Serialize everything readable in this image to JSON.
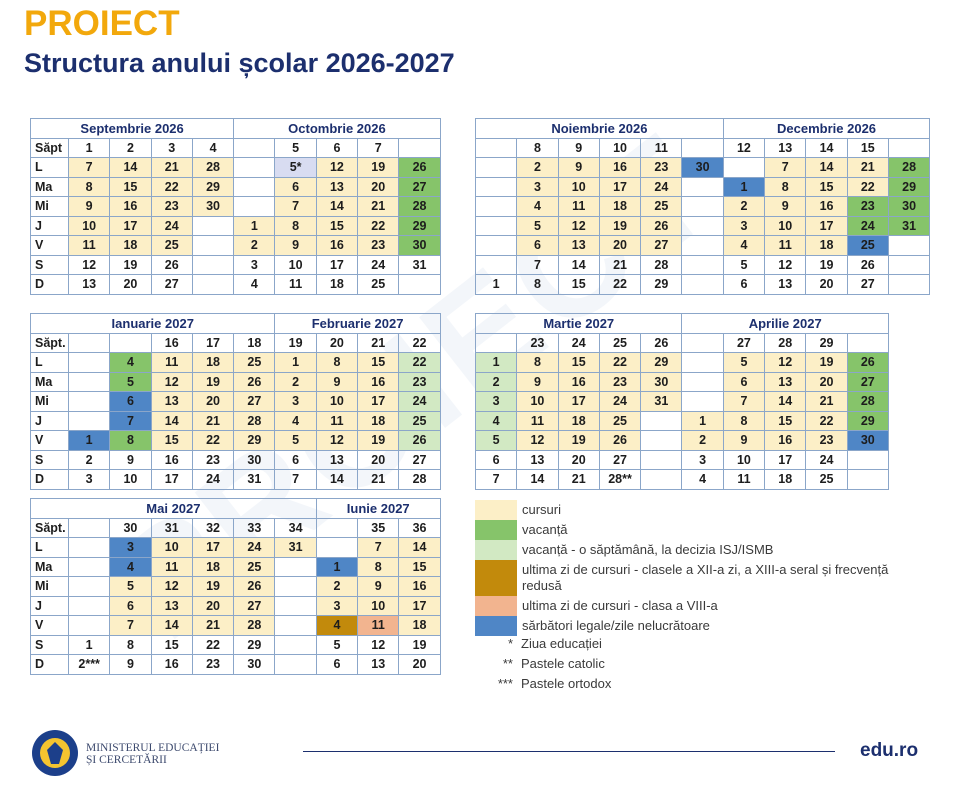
{
  "header": {
    "title": "PROIECT",
    "subtitle": "Structura anului școlar 2026-2027"
  },
  "calendars": [
    {
      "months": [
        "Septembrie 2026",
        "Octombrie 2026"
      ],
      "weeks": [
        "Săpt",
        1,
        2,
        3,
        4,
        null,
        5,
        6,
        7,
        null
      ],
      "rows": [
        {
          "day": "L",
          "cells": [
            7,
            14,
            21,
            28,
            null,
            "5*",
            12,
            19,
            26
          ],
          "colors": [
            "#fcefc7",
            "#fcefc7",
            "#fcefc7",
            "#fcefc7",
            null,
            "#d8dcf1",
            "#fcefc7",
            "#fcefc7",
            "#86c46a"
          ]
        },
        {
          "day": "Ma",
          "cells": [
            8,
            15,
            22,
            29,
            null,
            6,
            13,
            20,
            27
          ],
          "colors": [
            "#fcefc7",
            "#fcefc7",
            "#fcefc7",
            "#fcefc7",
            null,
            "#fcefc7",
            "#fcefc7",
            "#fcefc7",
            "#86c46a"
          ]
        },
        {
          "day": "Mi",
          "cells": [
            9,
            16,
            23,
            30,
            null,
            7,
            14,
            21,
            28
          ],
          "colors": [
            "#fcefc7",
            "#fcefc7",
            "#fcefc7",
            "#fcefc7",
            null,
            "#fcefc7",
            "#fcefc7",
            "#fcefc7",
            "#86c46a"
          ]
        },
        {
          "day": "J",
          "cells": [
            10,
            17,
            24,
            null,
            1,
            8,
            15,
            22,
            29
          ],
          "colors": [
            "#fcefc7",
            "#fcefc7",
            "#fcefc7",
            null,
            "#fcefc7",
            "#fcefc7",
            "#fcefc7",
            "#fcefc7",
            "#86c46a"
          ]
        },
        {
          "day": "V",
          "cells": [
            11,
            18,
            25,
            null,
            2,
            9,
            16,
            23,
            30
          ],
          "colors": [
            "#fcefc7",
            "#fcefc7",
            "#fcefc7",
            null,
            "#fcefc7",
            "#fcefc7",
            "#fcefc7",
            "#fcefc7",
            "#86c46a"
          ]
        },
        {
          "day": "S",
          "cells": [
            12,
            19,
            26,
            null,
            3,
            10,
            17,
            24,
            31
          ],
          "colors": [
            null,
            null,
            null,
            null,
            null,
            null,
            null,
            null,
            null
          ]
        },
        {
          "day": "D",
          "cells": [
            13,
            20,
            27,
            null,
            4,
            11,
            18,
            25,
            null
          ],
          "colors": [
            null,
            null,
            null,
            null,
            null,
            null,
            null,
            null,
            null
          ]
        }
      ]
    },
    {
      "months": [
        "Noiembrie 2026",
        "Decembrie 2026"
      ],
      "weeks": [
        null,
        8,
        9,
        10,
        11,
        null,
        12,
        13,
        14,
        15,
        null
      ],
      "rows": [
        {
          "cells": [
            null,
            2,
            9,
            16,
            23,
            30,
            null,
            7,
            14,
            21,
            28
          ],
          "colors": [
            null,
            "#fcefc7",
            "#fcefc7",
            "#fcefc7",
            "#fcefc7",
            "#4f86c6",
            null,
            "#fcefc7",
            "#fcefc7",
            "#fcefc7",
            "#86c46a"
          ]
        },
        {
          "cells": [
            null,
            3,
            10,
            17,
            24,
            null,
            1,
            8,
            15,
            22,
            29
          ],
          "colors": [
            null,
            "#fcefc7",
            "#fcefc7",
            "#fcefc7",
            "#fcefc7",
            null,
            "#4f86c6",
            "#fcefc7",
            "#fcefc7",
            "#fcefc7",
            "#86c46a"
          ]
        },
        {
          "cells": [
            null,
            4,
            11,
            18,
            25,
            null,
            2,
            9,
            16,
            23,
            30
          ],
          "colors": [
            null,
            "#fcefc7",
            "#fcefc7",
            "#fcefc7",
            "#fcefc7",
            null,
            "#fcefc7",
            "#fcefc7",
            "#fcefc7",
            "#86c46a",
            "#86c46a"
          ]
        },
        {
          "cells": [
            null,
            5,
            12,
            19,
            26,
            null,
            3,
            10,
            17,
            24,
            31
          ],
          "colors": [
            null,
            "#fcefc7",
            "#fcefc7",
            "#fcefc7",
            "#fcefc7",
            null,
            "#fcefc7",
            "#fcefc7",
            "#fcefc7",
            "#86c46a",
            "#86c46a"
          ]
        },
        {
          "cells": [
            null,
            6,
            13,
            20,
            27,
            null,
            4,
            11,
            18,
            25,
            null
          ],
          "colors": [
            null,
            "#fcefc7",
            "#fcefc7",
            "#fcefc7",
            "#fcefc7",
            null,
            "#fcefc7",
            "#fcefc7",
            "#fcefc7",
            "#4f86c6",
            null
          ]
        },
        {
          "cells": [
            null,
            7,
            14,
            21,
            28,
            null,
            5,
            12,
            19,
            26,
            null
          ],
          "colors": [
            null,
            null,
            null,
            null,
            null,
            null,
            null,
            null,
            null,
            null,
            null
          ]
        },
        {
          "cells": [
            1,
            8,
            15,
            22,
            29,
            null,
            6,
            13,
            20,
            27,
            null
          ],
          "colors": [
            null,
            null,
            null,
            null,
            null,
            null,
            null,
            null,
            null,
            null,
            null
          ]
        }
      ]
    },
    {
      "months": [
        "Ianuarie 2027",
        "Februarie 2027"
      ],
      "weeks": [
        "Săpt.",
        null,
        null,
        16,
        17,
        18,
        19,
        20,
        21,
        22
      ],
      "rows": [
        {
          "day": "L",
          "cells": [
            null,
            4,
            11,
            18,
            25,
            1,
            8,
            15,
            22
          ],
          "colors": [
            null,
            "#86c46a",
            "#fcefc7",
            "#fcefc7",
            "#fcefc7",
            "#fcefc7",
            "#fcefc7",
            "#fcefc7",
            "#d2e9c3"
          ]
        },
        {
          "day": "Ma",
          "cells": [
            null,
            5,
            12,
            19,
            26,
            2,
            9,
            16,
            23
          ],
          "colors": [
            null,
            "#86c46a",
            "#fcefc7",
            "#fcefc7",
            "#fcefc7",
            "#fcefc7",
            "#fcefc7",
            "#fcefc7",
            "#d2e9c3"
          ]
        },
        {
          "day": "Mi",
          "cells": [
            null,
            6,
            13,
            20,
            27,
            3,
            10,
            17,
            24
          ],
          "colors": [
            null,
            "#4f86c6",
            "#fcefc7",
            "#fcefc7",
            "#fcefc7",
            "#fcefc7",
            "#fcefc7",
            "#fcefc7",
            "#d2e9c3"
          ]
        },
        {
          "day": "J",
          "cells": [
            null,
            7,
            14,
            21,
            28,
            4,
            11,
            18,
            25
          ],
          "colors": [
            null,
            "#4f86c6",
            "#fcefc7",
            "#fcefc7",
            "#fcefc7",
            "#fcefc7",
            "#fcefc7",
            "#fcefc7",
            "#d2e9c3"
          ]
        },
        {
          "day": "V",
          "cells": [
            1,
            8,
            15,
            22,
            29,
            5,
            12,
            19,
            26
          ],
          "colors": [
            "#4f86c6",
            "#86c46a",
            "#fcefc7",
            "#fcefc7",
            "#fcefc7",
            "#fcefc7",
            "#fcefc7",
            "#fcefc7",
            "#d2e9c3"
          ]
        },
        {
          "day": "S",
          "cells": [
            2,
            9,
            16,
            23,
            30,
            6,
            13,
            20,
            27
          ],
          "colors": [
            null,
            null,
            null,
            null,
            null,
            null,
            null,
            null,
            null
          ]
        },
        {
          "day": "D",
          "cells": [
            3,
            10,
            17,
            24,
            31,
            7,
            14,
            21,
            28
          ],
          "colors": [
            null,
            null,
            null,
            null,
            null,
            null,
            null,
            null,
            null
          ]
        }
      ]
    },
    {
      "months": [
        "Martie 2027",
        "Aprilie 2027"
      ],
      "weeks": [
        null,
        23,
        24,
        25,
        26,
        null,
        27,
        28,
        29,
        null
      ],
      "rows": [
        {
          "cells": [
            1,
            8,
            15,
            22,
            29,
            null,
            5,
            12,
            19,
            26
          ],
          "colors": [
            "#d2e9c3",
            "#fcefc7",
            "#fcefc7",
            "#fcefc7",
            "#fcefc7",
            null,
            "#fcefc7",
            "#fcefc7",
            "#fcefc7",
            "#86c46a"
          ]
        },
        {
          "cells": [
            2,
            9,
            16,
            23,
            30,
            null,
            6,
            13,
            20,
            27
          ],
          "colors": [
            "#d2e9c3",
            "#fcefc7",
            "#fcefc7",
            "#fcefc7",
            "#fcefc7",
            null,
            "#fcefc7",
            "#fcefc7",
            "#fcefc7",
            "#86c46a"
          ]
        },
        {
          "cells": [
            3,
            10,
            17,
            24,
            31,
            null,
            7,
            14,
            21,
            28
          ],
          "colors": [
            "#d2e9c3",
            "#fcefc7",
            "#fcefc7",
            "#fcefc7",
            "#fcefc7",
            null,
            "#fcefc7",
            "#fcefc7",
            "#fcefc7",
            "#86c46a"
          ]
        },
        {
          "cells": [
            4,
            11,
            18,
            25,
            null,
            1,
            8,
            15,
            22,
            29
          ],
          "colors": [
            "#d2e9c3",
            "#fcefc7",
            "#fcefc7",
            "#fcefc7",
            null,
            "#fcefc7",
            "#fcefc7",
            "#fcefc7",
            "#fcefc7",
            "#86c46a"
          ]
        },
        {
          "cells": [
            5,
            12,
            19,
            26,
            null,
            2,
            9,
            16,
            23,
            30
          ],
          "colors": [
            "#d2e9c3",
            "#fcefc7",
            "#fcefc7",
            "#fcefc7",
            null,
            "#fcefc7",
            "#fcefc7",
            "#fcefc7",
            "#fcefc7",
            "#4f86c6"
          ]
        },
        {
          "cells": [
            6,
            13,
            20,
            27,
            null,
            3,
            10,
            17,
            24,
            null
          ],
          "colors": [
            null,
            null,
            null,
            null,
            null,
            null,
            null,
            null,
            null,
            null
          ]
        },
        {
          "cells": [
            7,
            14,
            21,
            "28**",
            null,
            4,
            11,
            18,
            25,
            null
          ],
          "colors": [
            null,
            null,
            null,
            null,
            null,
            null,
            null,
            null,
            null,
            null
          ]
        }
      ]
    },
    {
      "months": [
        "Mai 2027",
        "Iunie 2027"
      ],
      "weeks": [
        "Săpt.",
        null,
        30,
        31,
        32,
        33,
        34,
        null,
        35,
        36
      ],
      "rows": [
        {
          "day": "L",
          "cells": [
            null,
            3,
            10,
            17,
            24,
            31,
            null,
            7,
            14
          ],
          "colors": [
            null,
            "#4f86c6",
            "#fcefc7",
            "#fcefc7",
            "#fcefc7",
            "#fcefc7",
            null,
            "#fcefc7",
            "#fcefc7"
          ]
        },
        {
          "day": "Ma",
          "cells": [
            null,
            4,
            11,
            18,
            25,
            null,
            1,
            8,
            15
          ],
          "colors": [
            null,
            "#4f86c6",
            "#fcefc7",
            "#fcefc7",
            "#fcefc7",
            null,
            "#4f86c6",
            "#fcefc7",
            "#fcefc7"
          ]
        },
        {
          "day": "Mi",
          "cells": [
            null,
            5,
            12,
            19,
            26,
            null,
            2,
            9,
            16
          ],
          "colors": [
            null,
            "#fcefc7",
            "#fcefc7",
            "#fcefc7",
            "#fcefc7",
            null,
            "#fcefc7",
            "#fcefc7",
            "#fcefc7"
          ]
        },
        {
          "day": "J",
          "cells": [
            null,
            6,
            13,
            20,
            27,
            null,
            3,
            10,
            17
          ],
          "colors": [
            null,
            "#fcefc7",
            "#fcefc7",
            "#fcefc7",
            "#fcefc7",
            null,
            "#fcefc7",
            "#fcefc7",
            "#fcefc7"
          ]
        },
        {
          "day": "V",
          "cells": [
            null,
            7,
            14,
            21,
            28,
            null,
            4,
            11,
            18
          ],
          "colors": [
            null,
            "#fcefc7",
            "#fcefc7",
            "#fcefc7",
            "#fcefc7",
            null,
            "#c28a0c",
            "#f2b48f",
            "#fcefc7"
          ]
        },
        {
          "day": "S",
          "cells": [
            1,
            8,
            15,
            22,
            29,
            null,
            5,
            12,
            19
          ],
          "colors": [
            null,
            null,
            null,
            null,
            null,
            null,
            null,
            null,
            null
          ]
        },
        {
          "day": "D",
          "cells": [
            "2***",
            9,
            16,
            23,
            30,
            null,
            6,
            13,
            20
          ],
          "colors": [
            null,
            null,
            null,
            null,
            null,
            null,
            null,
            null,
            null
          ]
        }
      ]
    }
  ],
  "legend": [
    {
      "label": "cursuri",
      "color": "#fcefc7"
    },
    {
      "label": "vacanță",
      "color": "#86c46a"
    },
    {
      "label": "vacanță - o săptămână, la decizia ISJ/ISMB",
      "color": "#d2e9c3"
    },
    {
      "label": "ultima zi de cursuri - clasele a XII-a zi, a XIII-a seral și frecvență redusă",
      "color": "#c28a0c"
    },
    {
      "label": "ultima zi de cursuri - clasa a VIII-a",
      "color": "#f2b48f"
    },
    {
      "label": "sărbători legale/zile nelucrătoare",
      "color": "#4f86c6"
    }
  ],
  "notes": [
    {
      "symbol": "*",
      "text": "Ziua educației"
    },
    {
      "symbol": "**",
      "text": "Pastele catolic"
    },
    {
      "symbol": "***",
      "text": "Pastele ortodox"
    }
  ],
  "footer": {
    "ministry": [
      "MINISTERUL EDUCAȚIEI",
      "ȘI CERCETĂRII"
    ],
    "site": "edu.ro"
  }
}
